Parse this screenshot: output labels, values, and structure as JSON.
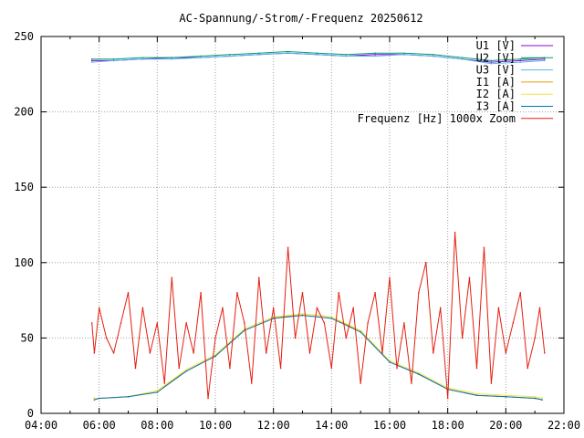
{
  "chart_data": {
    "type": "line",
    "title": "AC-Spannung/-Strom/-Frequenz 20250612",
    "xlabel": "",
    "ylabel": "",
    "grid": true,
    "legend_position": "top-right",
    "xlim": [
      "04:00",
      "22:00"
    ],
    "ylim": [
      0,
      250
    ],
    "x_ticks": [
      "04:00",
      "06:00",
      "08:00",
      "10:00",
      "12:00",
      "14:00",
      "16:00",
      "18:00",
      "20:00",
      "22:00"
    ],
    "y_ticks": [
      "0",
      "50",
      "100",
      "150",
      "200",
      "250"
    ],
    "series": [
      {
        "name": "U1 [V]",
        "color": "#9400d3",
        "x": [
          "05:45",
          "06:30",
          "07:30",
          "08:30",
          "09:30",
          "10:30",
          "11:30",
          "12:30",
          "13:30",
          "14:30",
          "15:30",
          "16:30",
          "17:30",
          "18:30",
          "19:30",
          "20:30",
          "21:20"
        ],
        "values": [
          234,
          234,
          235,
          236,
          236,
          237,
          238,
          239,
          238,
          237,
          238,
          238,
          237,
          235,
          233,
          234,
          235
        ]
      },
      {
        "name": "U2 [V]",
        "color": "#009e73",
        "x": [
          "05:45",
          "06:30",
          "07:30",
          "08:30",
          "09:30",
          "10:30",
          "11:30",
          "12:30",
          "13:30",
          "14:30",
          "15:30",
          "16:30",
          "17:30",
          "18:30",
          "19:30",
          "20:30",
          "21:20"
        ],
        "values": [
          235,
          235,
          236,
          236,
          237,
          238,
          239,
          240,
          239,
          238,
          239,
          239,
          238,
          236,
          234,
          235,
          236
        ]
      },
      {
        "name": "U3 [V]",
        "color": "#56b4e9",
        "x": [
          "05:45",
          "06:30",
          "07:30",
          "08:30",
          "09:30",
          "10:30",
          "11:30",
          "12:30",
          "13:30",
          "14:30",
          "15:30",
          "16:30",
          "17:30",
          "18:30",
          "19:30",
          "20:30",
          "21:20"
        ],
        "values": [
          233,
          234,
          235,
          235,
          236,
          237,
          238,
          239,
          238,
          237,
          237,
          238,
          237,
          235,
          232,
          233,
          234
        ]
      },
      {
        "name": "I1 [A]",
        "color": "#e69f00",
        "x": [
          "05:50",
          "06:00",
          "07:00",
          "08:00",
          "09:00",
          "10:00",
          "11:00",
          "12:00",
          "13:00",
          "14:00",
          "15:00",
          "16:00",
          "17:00",
          "18:00",
          "19:00",
          "20:00",
          "21:00",
          "21:15"
        ],
        "values": [
          10,
          10,
          11,
          15,
          28,
          38,
          55,
          63,
          66,
          64,
          54,
          34,
          26,
          16,
          12,
          11,
          10,
          9
        ]
      },
      {
        "name": "I2 [A]",
        "color": "#f0e442",
        "x": [
          "05:50",
          "06:00",
          "07:00",
          "08:00",
          "09:00",
          "10:00",
          "11:00",
          "12:00",
          "13:00",
          "14:00",
          "15:00",
          "16:00",
          "17:00",
          "18:00",
          "19:00",
          "20:00",
          "21:00",
          "21:15"
        ],
        "values": [
          10,
          10,
          11,
          15,
          29,
          39,
          56,
          64,
          66,
          64,
          55,
          35,
          27,
          17,
          13,
          12,
          11,
          10
        ]
      },
      {
        "name": "I3 [A]",
        "color": "#0072b2",
        "x": [
          "05:50",
          "06:00",
          "07:00",
          "08:00",
          "09:00",
          "10:00",
          "11:00",
          "12:00",
          "13:00",
          "14:00",
          "15:00",
          "16:00",
          "17:00",
          "18:00",
          "19:00",
          "20:00",
          "21:00",
          "21:15"
        ],
        "values": [
          9,
          10,
          11,
          14,
          28,
          38,
          55,
          63,
          65,
          63,
          54,
          34,
          26,
          16,
          12,
          11,
          10,
          9
        ]
      },
      {
        "name": "Frequenz [Hz] 1000x Zoom",
        "color": "#e51e10",
        "x": [
          "05:45",
          "05:50",
          "06:00",
          "06:15",
          "06:30",
          "06:45",
          "07:00",
          "07:15",
          "07:30",
          "07:45",
          "08:00",
          "08:15",
          "08:30",
          "08:45",
          "09:00",
          "09:15",
          "09:30",
          "09:45",
          "10:00",
          "10:15",
          "10:30",
          "10:45",
          "11:00",
          "11:15",
          "11:30",
          "11:45",
          "12:00",
          "12:15",
          "12:30",
          "12:45",
          "13:00",
          "13:15",
          "13:30",
          "13:45",
          "14:00",
          "14:15",
          "14:30",
          "14:45",
          "15:00",
          "15:15",
          "15:30",
          "15:45",
          "16:00",
          "16:15",
          "16:30",
          "16:45",
          "17:00",
          "17:15",
          "17:30",
          "17:45",
          "18:00",
          "18:15",
          "18:30",
          "18:45",
          "19:00",
          "19:15",
          "19:30",
          "19:45",
          "20:00",
          "20:15",
          "20:30",
          "20:45",
          "21:00",
          "21:10",
          "21:20"
        ],
        "values": [
          60,
          40,
          70,
          50,
          40,
          60,
          80,
          30,
          70,
          40,
          60,
          20,
          90,
          30,
          60,
          40,
          80,
          10,
          50,
          70,
          30,
          80,
          60,
          20,
          90,
          40,
          70,
          30,
          110,
          50,
          80,
          40,
          70,
          60,
          30,
          80,
          50,
          70,
          20,
          60,
          80,
          40,
          90,
          30,
          60,
          20,
          80,
          100,
          40,
          70,
          10,
          120,
          50,
          90,
          30,
          110,
          20,
          70,
          40,
          60,
          80,
          30,
          50,
          70,
          40
        ]
      }
    ]
  }
}
